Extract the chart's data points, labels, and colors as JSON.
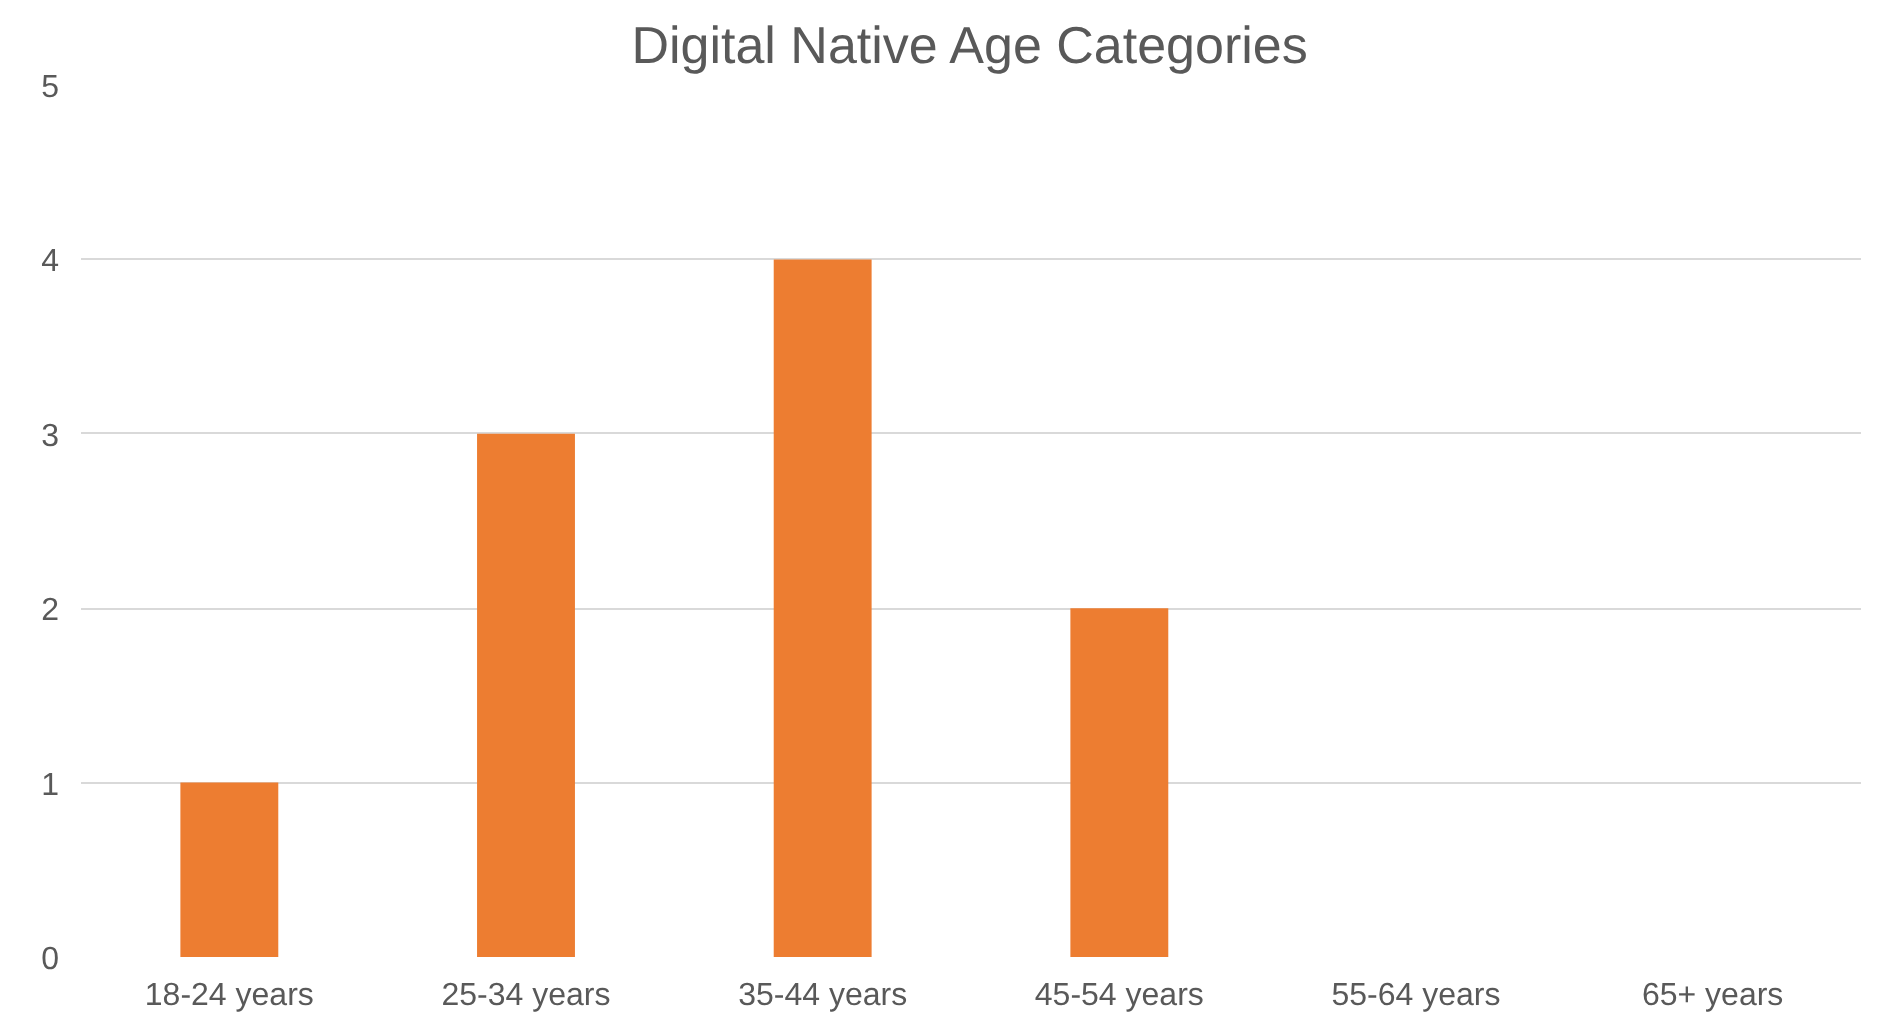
{
  "chart_data": {
    "type": "bar",
    "title": "Digital Native Age Categories",
    "categories": [
      "18-24 years",
      "25-34 years",
      "35-44 years",
      "45-54 years",
      "55-64 years",
      "65+ years"
    ],
    "values": [
      1,
      3,
      4,
      2,
      0,
      0
    ],
    "color": "#ed7d31",
    "ylim": [
      0,
      5
    ],
    "yticks": [
      0,
      1,
      2,
      3,
      4,
      5
    ],
    "grid": "y"
  }
}
